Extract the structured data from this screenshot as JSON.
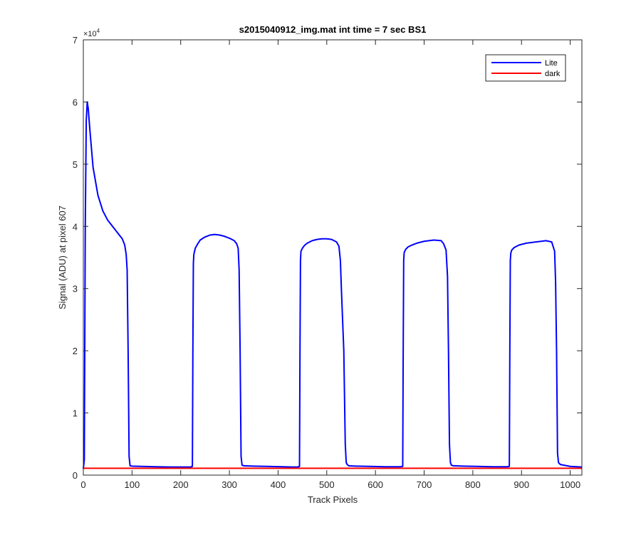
{
  "chart_data": {
    "type": "line",
    "title": "s2015040912_img.mat int time = 7 sec   BS1",
    "xlabel": "Track Pixels",
    "ylabel": "Signal (ADU) at pixel 607",
    "exponent_label": "×10",
    "exponent_power": "4",
    "xlim": [
      0,
      1024
    ],
    "ylim": [
      0,
      70000
    ],
    "xticks": [
      0,
      100,
      200,
      300,
      400,
      500,
      600,
      700,
      800,
      900,
      1000
    ],
    "yticks": [
      0,
      10000,
      20000,
      30000,
      40000,
      50000,
      60000,
      70000
    ],
    "ytick_labels": [
      "0",
      "1",
      "2",
      "3",
      "4",
      "5",
      "6",
      "7"
    ],
    "grid": false,
    "legend_position": "top-right",
    "series": [
      {
        "name": "Lite",
        "color": "#0000ff",
        "x": [
          0,
          2,
          4,
          6,
          8,
          10,
          14,
          20,
          30,
          40,
          50,
          60,
          70,
          75,
          80,
          85,
          88,
          90,
          92,
          94,
          96,
          100,
          120,
          150,
          180,
          200,
          210,
          220,
          224,
          225,
          226,
          227,
          230,
          235,
          240,
          250,
          260,
          270,
          280,
          290,
          300,
          310,
          315,
          318,
          320,
          322,
          324,
          326,
          330,
          350,
          380,
          410,
          430,
          440,
          444,
          445,
          446,
          447,
          450,
          455,
          460,
          470,
          480,
          490,
          500,
          510,
          520,
          525,
          528,
          530,
          535,
          538,
          540,
          542,
          545,
          560,
          590,
          620,
          650,
          656,
          657,
          658,
          659,
          662,
          667,
          675,
          685,
          700,
          720,
          735,
          740,
          745,
          748,
          750,
          752,
          754,
          756,
          760,
          780,
          810,
          840,
          870,
          875,
          876,
          877,
          878,
          880,
          885,
          895,
          910,
          930,
          950,
          962,
          968,
          970,
          972,
          974,
          976,
          980,
          1000,
          1024
        ],
        "values": [
          1000,
          2500,
          40000,
          57000,
          60000,
          59000,
          55000,
          49500,
          45000,
          42500,
          41000,
          40000,
          39000,
          38500,
          38000,
          37000,
          35500,
          33000,
          20000,
          3000,
          1500,
          1450,
          1400,
          1350,
          1300,
          1300,
          1300,
          1300,
          1400,
          20000,
          34000,
          35500,
          36500,
          37200,
          37800,
          38300,
          38600,
          38700,
          38600,
          38400,
          38100,
          37700,
          37200,
          36500,
          33000,
          20000,
          3000,
          1600,
          1500,
          1450,
          1400,
          1350,
          1300,
          1300,
          1400,
          20000,
          34500,
          36000,
          36500,
          37000,
          37300,
          37700,
          37900,
          38000,
          38000,
          37900,
          37500,
          36800,
          34500,
          30000,
          20000,
          5000,
          2000,
          1700,
          1500,
          1450,
          1400,
          1350,
          1350,
          1400,
          20000,
          34500,
          35800,
          36300,
          36700,
          37000,
          37300,
          37600,
          37800,
          37700,
          37200,
          36200,
          32000,
          20000,
          5000,
          2000,
          1600,
          1500,
          1450,
          1400,
          1350,
          1350,
          1400,
          20000,
          34500,
          35700,
          36200,
          36600,
          37000,
          37300,
          37500,
          37700,
          37500,
          36000,
          31000,
          20000,
          3500,
          2000,
          1700,
          1400,
          1300
        ]
      },
      {
        "name": "dark",
        "color": "#ff0000",
        "x": [
          0,
          1024
        ],
        "values": [
          1100,
          1100
        ]
      }
    ]
  }
}
